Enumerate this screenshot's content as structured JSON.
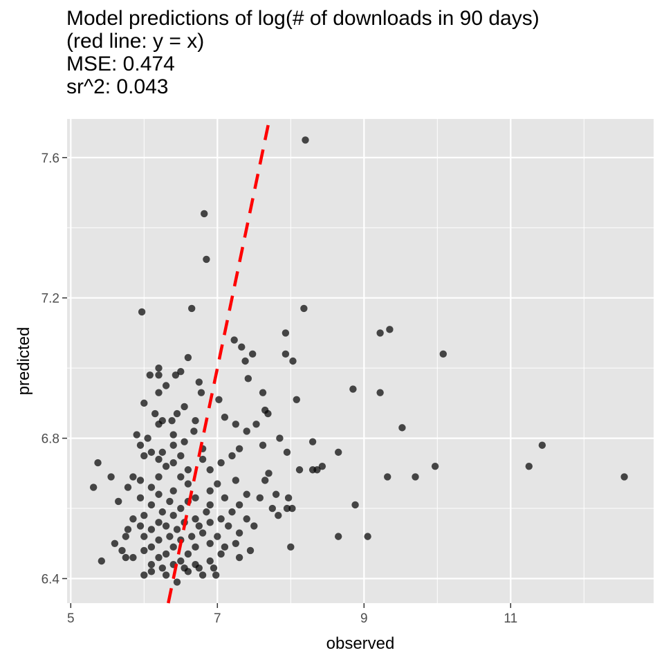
{
  "chart_data": {
    "type": "scatter",
    "title": [
      "Model predictions of log(# of downloads in 90 days)",
      "(red line: y = x)",
      "MSE: 0.474",
      "sr^2: 0.043"
    ],
    "xlabel": "observed",
    "ylabel": "predicted",
    "xlim": [
      4.95,
      12.95
    ],
    "ylim": [
      6.33,
      7.71
    ],
    "x_ticks": [
      5,
      7,
      9,
      11
    ],
    "y_ticks": [
      6.4,
      6.8,
      7.2,
      7.6
    ],
    "reference_line": {
      "label": "y = x",
      "color": "#ff0000",
      "style": "dashed"
    },
    "point_color": "#000000",
    "panel_background": "#e5e5e5",
    "grid": true,
    "points": [
      [
        8.2,
        7.65
      ],
      [
        6.82,
        7.44
      ],
      [
        6.85,
        7.31
      ],
      [
        8.18,
        7.17
      ],
      [
        6.65,
        7.17
      ],
      [
        5.97,
        7.16
      ],
      [
        9.35,
        7.11
      ],
      [
        9.22,
        7.1
      ],
      [
        7.93,
        7.1
      ],
      [
        7.23,
        7.08
      ],
      [
        7.33,
        7.06
      ],
      [
        10.08,
        7.04
      ],
      [
        7.93,
        7.04
      ],
      [
        7.48,
        7.04
      ],
      [
        8.03,
        7.02
      ],
      [
        7.38,
        7.02
      ],
      [
        6.6,
        7.03
      ],
      [
        6.2,
        7.0
      ],
      [
        6.2,
        6.98
      ],
      [
        6.08,
        6.98
      ],
      [
        6.43,
        6.98
      ],
      [
        6.5,
        6.99
      ],
      [
        7.42,
        6.97
      ],
      [
        6.75,
        6.96
      ],
      [
        6.3,
        6.95
      ],
      [
        8.85,
        6.94
      ],
      [
        9.22,
        6.93
      ],
      [
        6.2,
        6.93
      ],
      [
        6.78,
        6.93
      ],
      [
        7.62,
        6.93
      ],
      [
        7.02,
        6.91
      ],
      [
        8.08,
        6.91
      ],
      [
        6.0,
        6.9
      ],
      [
        6.55,
        6.89
      ],
      [
        7.65,
        6.88
      ],
      [
        6.45,
        6.87
      ],
      [
        6.15,
        6.87
      ],
      [
        7.69,
        6.87
      ],
      [
        6.38,
        6.85
      ],
      [
        6.25,
        6.85
      ],
      [
        6.7,
        6.85
      ],
      [
        7.1,
        6.86
      ],
      [
        7.25,
        6.84
      ],
      [
        7.53,
        6.84
      ],
      [
        6.2,
        6.84
      ],
      [
        9.52,
        6.83
      ],
      [
        6.68,
        6.82
      ],
      [
        7.4,
        6.82
      ],
      [
        5.9,
        6.81
      ],
      [
        7.85,
        6.8
      ],
      [
        6.4,
        6.81
      ],
      [
        6.05,
        6.8
      ],
      [
        6.55,
        6.79
      ],
      [
        8.3,
        6.79
      ],
      [
        7.62,
        6.78
      ],
      [
        6.4,
        6.78
      ],
      [
        6.8,
        6.77
      ],
      [
        5.95,
        6.78
      ],
      [
        6.25,
        6.76
      ],
      [
        7.3,
        6.77
      ],
      [
        6.1,
        6.76
      ],
      [
        8.65,
        6.76
      ],
      [
        6.0,
        6.75
      ],
      [
        6.5,
        6.75
      ],
      [
        6.8,
        6.74
      ],
      [
        7.2,
        6.75
      ],
      [
        7.95,
        6.76
      ],
      [
        5.37,
        6.73
      ],
      [
        6.2,
        6.74
      ],
      [
        6.4,
        6.73
      ],
      [
        7.05,
        6.73
      ],
      [
        11.43,
        6.78
      ],
      [
        8.43,
        6.72
      ],
      [
        9.97,
        6.72
      ],
      [
        11.25,
        6.72
      ],
      [
        6.3,
        6.72
      ],
      [
        6.9,
        6.71
      ],
      [
        8.12,
        6.71
      ],
      [
        8.3,
        6.71
      ],
      [
        8.36,
        6.71
      ],
      [
        6.6,
        6.71
      ],
      [
        7.7,
        6.7
      ],
      [
        5.55,
        6.69
      ],
      [
        9.7,
        6.69
      ],
      [
        9.32,
        6.69
      ],
      [
        12.55,
        6.69
      ],
      [
        5.85,
        6.69
      ],
      [
        6.2,
        6.69
      ],
      [
        6.5,
        6.69
      ],
      [
        7.25,
        6.68
      ],
      [
        7.65,
        6.68
      ],
      [
        5.95,
        6.68
      ],
      [
        6.6,
        6.67
      ],
      [
        7.0,
        6.67
      ],
      [
        5.78,
        6.66
      ],
      [
        6.1,
        6.66
      ],
      [
        5.31,
        6.66
      ],
      [
        6.4,
        6.65
      ],
      [
        6.9,
        6.65
      ],
      [
        7.4,
        6.64
      ],
      [
        7.8,
        6.64
      ],
      [
        6.2,
        6.64
      ],
      [
        6.7,
        6.63
      ],
      [
        7.1,
        6.63
      ],
      [
        5.95,
        6.63
      ],
      [
        7.58,
        6.63
      ],
      [
        7.97,
        6.63
      ],
      [
        6.35,
        6.62
      ],
      [
        6.6,
        6.62
      ],
      [
        5.65,
        6.62
      ],
      [
        6.9,
        6.61
      ],
      [
        7.3,
        6.61
      ],
      [
        8.88,
        6.61
      ],
      [
        6.1,
        6.61
      ],
      [
        6.5,
        6.6
      ],
      [
        7.75,
        6.6
      ],
      [
        7.95,
        6.6
      ],
      [
        8.02,
        6.6
      ],
      [
        6.25,
        6.59
      ],
      [
        6.85,
        6.59
      ],
      [
        7.2,
        6.59
      ],
      [
        6.0,
        6.58
      ],
      [
        6.4,
        6.58
      ],
      [
        5.85,
        6.57
      ],
      [
        6.7,
        6.57
      ],
      [
        7.05,
        6.57
      ],
      [
        7.4,
        6.57
      ],
      [
        7.83,
        6.58
      ],
      [
        6.2,
        6.56
      ],
      [
        6.55,
        6.56
      ],
      [
        6.9,
        6.56
      ],
      [
        5.95,
        6.55
      ],
      [
        6.3,
        6.55
      ],
      [
        6.75,
        6.55
      ],
      [
        7.15,
        6.55
      ],
      [
        7.5,
        6.55
      ],
      [
        6.1,
        6.54
      ],
      [
        6.45,
        6.54
      ],
      [
        5.78,
        6.54
      ],
      [
        6.8,
        6.53
      ],
      [
        7.3,
        6.53
      ],
      [
        6.0,
        6.52
      ],
      [
        6.35,
        6.52
      ],
      [
        6.65,
        6.52
      ],
      [
        7.0,
        6.52
      ],
      [
        8.65,
        6.52
      ],
      [
        9.05,
        6.52
      ],
      [
        5.75,
        6.52
      ],
      [
        6.2,
        6.51
      ],
      [
        6.5,
        6.51
      ],
      [
        5.6,
        6.5
      ],
      [
        6.9,
        6.5
      ],
      [
        7.25,
        6.5
      ],
      [
        6.1,
        6.49
      ],
      [
        6.4,
        6.49
      ],
      [
        6.7,
        6.49
      ],
      [
        7.1,
        6.49
      ],
      [
        8.0,
        6.49
      ],
      [
        5.7,
        6.48
      ],
      [
        6.0,
        6.48
      ],
      [
        6.3,
        6.47
      ],
      [
        6.6,
        6.47
      ],
      [
        7.05,
        6.47
      ],
      [
        7.45,
        6.48
      ],
      [
        5.85,
        6.46
      ],
      [
        6.2,
        6.46
      ],
      [
        6.5,
        6.45
      ],
      [
        5.75,
        6.46
      ],
      [
        6.9,
        6.45
      ],
      [
        7.3,
        6.46
      ],
      [
        5.42,
        6.45
      ],
      [
        6.1,
        6.44
      ],
      [
        6.4,
        6.44
      ],
      [
        6.7,
        6.44
      ],
      [
        6.25,
        6.43
      ],
      [
        6.6,
        6.42
      ],
      [
        6.95,
        6.43
      ],
      [
        6.0,
        6.41
      ],
      [
        6.3,
        6.41
      ],
      [
        6.75,
        6.43
      ],
      [
        6.1,
        6.42
      ],
      [
        6.55,
        6.43
      ],
      [
        6.8,
        6.41
      ],
      [
        6.98,
        6.41
      ],
      [
        6.45,
        6.39
      ]
    ]
  }
}
